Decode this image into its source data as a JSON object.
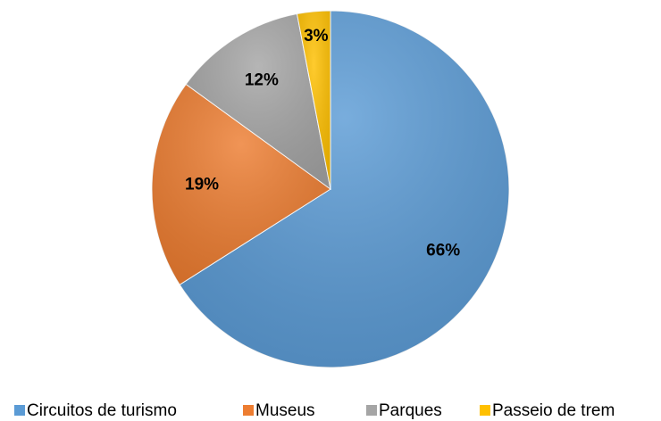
{
  "chart_data": {
    "type": "pie",
    "categories": [
      "Circuitos de turismo",
      "Museus",
      "Parques",
      "Passeio de trem"
    ],
    "values": [
      66,
      19,
      12,
      3
    ],
    "value_labels": [
      "66%",
      "19%",
      "12%",
      "3%"
    ],
    "colors": [
      "#5b9bd5",
      "#ed7d31",
      "#a5a5a5",
      "#ffc000"
    ],
    "legend": "bottom"
  }
}
